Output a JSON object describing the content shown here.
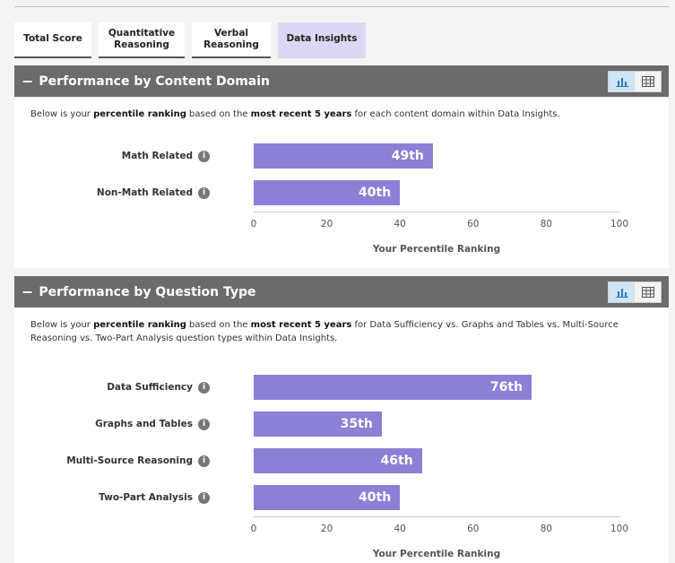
{
  "tabs": [
    {
      "label": "Total Score",
      "active": false
    },
    {
      "label": "Quantitative\nReasoning",
      "active": false
    },
    {
      "label": "Verbal\nReasoning",
      "active": false
    },
    {
      "label": "Data Insights",
      "active": true
    }
  ],
  "sections": [
    {
      "title": "Performance by Content Domain",
      "collapse_icon": "minus-icon",
      "view_toggle": {
        "chart_icon": "bar-chart-icon",
        "table_icon": "table-icon",
        "selected": "chart"
      },
      "description": {
        "p1": "Below is your ",
        "b1": "percentile ranking",
        "p2": " based on the ",
        "b2": "most recent 5 years",
        "p3": " for each content domain within Data Insights."
      },
      "chart_data": {
        "type": "bar",
        "orientation": "horizontal",
        "categories": [
          "Math Related",
          "Non-Math Related"
        ],
        "values": [
          49,
          40
        ],
        "data_labels": [
          "49th",
          "40th"
        ],
        "xlabel": "Your Percentile Ranking",
        "xlim": [
          0,
          100
        ],
        "xticks": [
          "0",
          "20",
          "40",
          "60",
          "80",
          "100"
        ],
        "bar_color": "#8c80d6"
      }
    },
    {
      "title": "Performance by Question Type",
      "collapse_icon": "minus-icon",
      "view_toggle": {
        "chart_icon": "bar-chart-icon",
        "table_icon": "table-icon",
        "selected": "chart"
      },
      "description": {
        "p1": "Below is your ",
        "b1": "percentile ranking",
        "p2": " based on the ",
        "b2": "most recent 5 years",
        "p3": " for Data Sufficiency vs. Graphs and Tables vs. Multi-Source Reasoning vs. Two-Part Analysis question types within Data Insights."
      },
      "chart_data": {
        "type": "bar",
        "orientation": "horizontal",
        "categories": [
          "Data Sufficiency",
          "Graphs and Tables",
          "Multi-Source Reasoning",
          "Two-Part Analysis"
        ],
        "values": [
          76,
          35,
          46,
          40
        ],
        "data_labels": [
          "76th",
          "35th",
          "46th",
          "40th"
        ],
        "xlabel": "Your Percentile Ranking",
        "xlim": [
          0,
          100
        ],
        "xticks": [
          "0",
          "20",
          "40",
          "60",
          "80",
          "100"
        ],
        "bar_color": "#8c80d6"
      }
    }
  ]
}
